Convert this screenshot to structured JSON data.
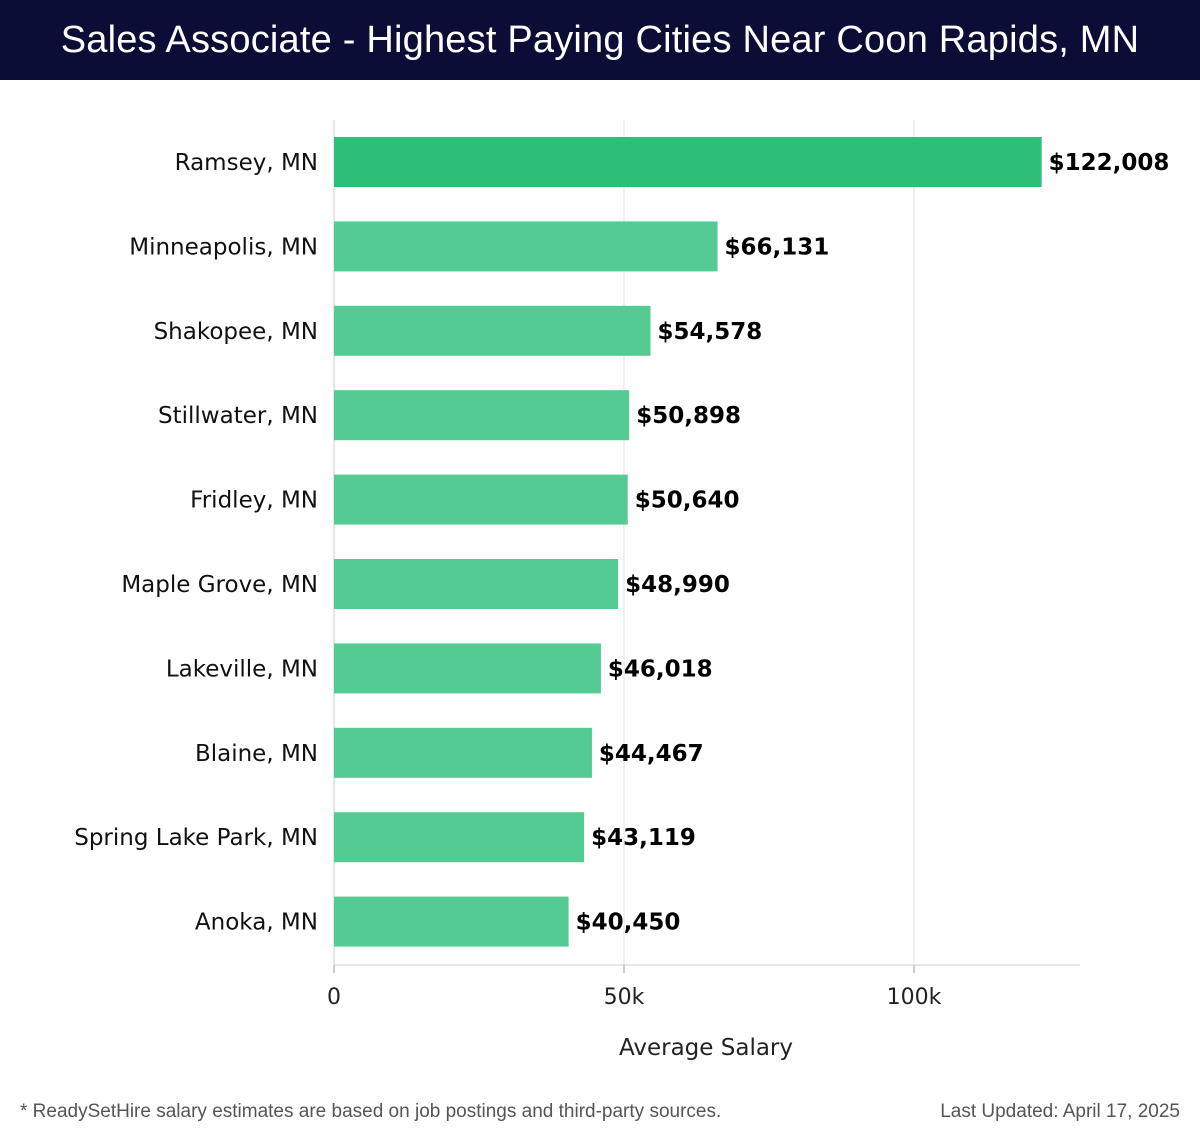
{
  "header": {
    "title": "Sales Associate - Highest Paying Cities Near Coon Rapids, MN"
  },
  "chart_data": {
    "type": "bar",
    "orientation": "horizontal",
    "title": "Sales Associate - Highest Paying Cities Near Coon Rapids, MN",
    "xlabel": "Average Salary",
    "ylabel": "",
    "xlim": [
      0,
      128500
    ],
    "xticks": [
      0,
      50000,
      100000
    ],
    "xtick_labels": [
      "0",
      "50k",
      "100k"
    ],
    "grid": true,
    "categories": [
      "Ramsey, MN",
      "Minneapolis, MN",
      "Shakopee, MN",
      "Stillwater, MN",
      "Fridley, MN",
      "Maple Grove, MN",
      "Lakeville, MN",
      "Blaine, MN",
      "Spring Lake Park, MN",
      "Anoka, MN"
    ],
    "values": [
      122008,
      66131,
      54578,
      50898,
      50640,
      48990,
      46018,
      44467,
      43119,
      40450
    ],
    "data_labels": [
      "$122,008",
      "$66,131",
      "$54,578",
      "$50,898",
      "$50,640",
      "$48,990",
      "$46,018",
      "$44,467",
      "$43,119",
      "$40,450"
    ],
    "colors": {
      "top": "#2bbf78",
      "other": "#54cb93",
      "grid": "#e2e2e2",
      "axis": "#cfcfcf"
    }
  },
  "footer": {
    "note": "* ReadySetHire salary estimates are based on job postings and third-party sources.",
    "updated": "Last Updated: April 17, 2025"
  }
}
